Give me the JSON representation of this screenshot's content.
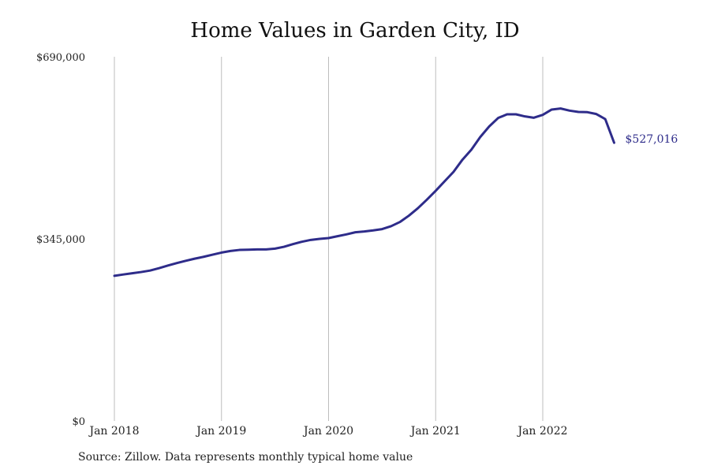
{
  "chart_data": {
    "type": "line",
    "title": "Home Values in Garden City, ID",
    "xlabel": "",
    "ylabel": "",
    "ylim": [
      0,
      690000
    ],
    "y_ticks": [
      {
        "value": 0,
        "label": "$0"
      },
      {
        "value": 345000,
        "label": "$345,000"
      },
      {
        "value": 690000,
        "label": "$690,000"
      }
    ],
    "x_ticks": [
      {
        "value": 0,
        "label": "Jan 2018"
      },
      {
        "value": 12,
        "label": "Jan 2019"
      },
      {
        "value": 24,
        "label": "Jan 2020"
      },
      {
        "value": 36,
        "label": "Jan 2021"
      },
      {
        "value": 48,
        "label": "Jan 2022"
      }
    ],
    "grid": "vertical at x ticks",
    "line_color": "#2e2c8a",
    "end_label": "$527,016",
    "series": [
      {
        "name": "",
        "values": [
          275000,
          277500,
          279800,
          282200,
          285000,
          289500,
          294500,
          299200,
          303500,
          307500,
          311000,
          315000,
          319000,
          322000,
          324000,
          324500,
          325000,
          325000,
          326500,
          330000,
          335000,
          339500,
          343000,
          345000,
          346500,
          350000,
          353500,
          357500,
          359000,
          361000,
          363500,
          369000,
          377000,
          389000,
          403000,
          419000,
          436000,
          454000,
          472000,
          495000,
          514000,
          538000,
          558000,
          574000,
          581000,
          581000,
          577000,
          574500,
          580000,
          590000,
          592000,
          588000,
          585500,
          585000,
          581500,
          572000,
          527016
        ]
      }
    ]
  },
  "source_note": "Source: Zillow. Data represents monthly typical home value"
}
